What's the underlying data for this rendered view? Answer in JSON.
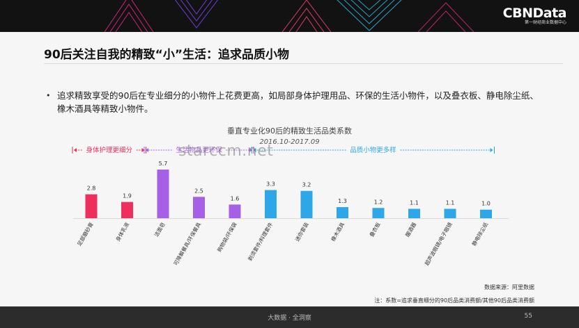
{
  "header": {
    "brand_name": "CBNData",
    "brand_sub": "第一财经商业数据中心"
  },
  "title": "90后关注自我的精致“小”生活：追求品质小物",
  "bullet": "追求精致享受的90后在专业细分的小物件上花费更高，如局部身体护理用品、环保的生活小物件，以及叠衣板、静电除尘纸、橡木酒具等精致小物件。",
  "watermark": "starccm.net",
  "source": "数据来源：阿里数据",
  "note": "注：系数=追求垂直细分的90后品类消费额/其他90后品类消费额",
  "footer": {
    "text": "大数据 · 全洞察",
    "page": "55"
  },
  "colors": {
    "red": "#ee2f5b",
    "purple": "#a560e6",
    "blue": "#2ea7e8"
  },
  "chart_data": {
    "type": "bar",
    "title": "垂直专业化90后的精致生活品类系数",
    "subtitle": "2016.10-2017.09",
    "categories": [
      "足部磨砂膏",
      "身体乳液",
      "洁面皂",
      "可降解餐具/环保餐具",
      "购物袋/环保袋",
      "剃须套件/料理套件",
      "迷你套装",
      "橡木酒具",
      "叠衣板",
      "醒酒器",
      "超声波眼镜/电子眼镜",
      "静电除尘纸"
    ],
    "values": [
      2.8,
      1.9,
      5.7,
      2.5,
      1.6,
      3.3,
      3.2,
      1.3,
      1.2,
      1.1,
      1.1,
      1.0
    ],
    "value_labels": [
      "2.8",
      "1.9",
      "5.7",
      "2.5",
      "1.6",
      "3.3",
      "3.2",
      "1.3",
      "1.2",
      "1.1",
      "1.1",
      "1.0"
    ],
    "groups": [
      {
        "label": "身体护理更细分",
        "color": "#ee2f5b",
        "count": 2
      },
      {
        "label": "生活物品更环保",
        "color": "#a560e6",
        "count": 3
      },
      {
        "label": "品质小物更多样",
        "color": "#2ea7e8",
        "count": 7
      }
    ],
    "ylim": [
      0,
      6
    ],
    "grid": false,
    "xlabel": "",
    "ylabel": ""
  }
}
